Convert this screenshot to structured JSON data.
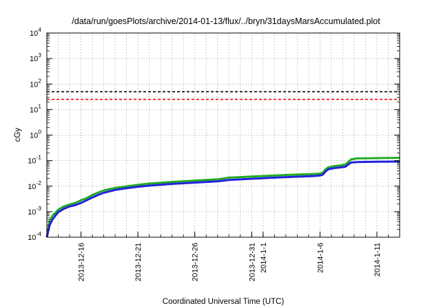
{
  "chart_data": {
    "type": "line",
    "title": "/data/run/goesPlots/archive/2014-01-13/flux/../bryn/31daysMarsAccumulated.plot",
    "xlabel": "Coordinated Universal Time (UTC)",
    "ylabel": "cGy",
    "yscale": "log",
    "ylim": [
      0.0001,
      10000
    ],
    "xlim": [
      "2013-12-13",
      "2014-01-13"
    ],
    "grid": true,
    "y_ticks": [
      {
        "value": 0.0001,
        "base": "10",
        "exp": "-4"
      },
      {
        "value": 0.001,
        "base": "10",
        "exp": "-3"
      },
      {
        "value": 0.01,
        "base": "10",
        "exp": "-2"
      },
      {
        "value": 0.1,
        "base": "10",
        "exp": "-1"
      },
      {
        "value": 1,
        "base": "10",
        "exp": "0"
      },
      {
        "value": 10,
        "base": "10",
        "exp": "1"
      },
      {
        "value": 100,
        "base": "10",
        "exp": "2"
      },
      {
        "value": 1000,
        "base": "10",
        "exp": "3"
      },
      {
        "value": 10000,
        "base": "10",
        "exp": "4"
      }
    ],
    "x_tick_dates": [
      "2013-12-16",
      "2013-12-21",
      "2013-12-26",
      "2013-12-31",
      "2014-01-01",
      "2014-01-06",
      "2014-01-11"
    ],
    "x_tick_labels": [
      "2013-12-16",
      "2013-12-21",
      "2013-12-26",
      "2013-12-31",
      "2014-1-1",
      "2014-1-6",
      "2014-1-11"
    ],
    "hlines": [
      {
        "value": 50,
        "color": "#000000",
        "style": "dashed"
      },
      {
        "value": 25,
        "color": "#ff0000",
        "style": "dashed"
      }
    ],
    "series": [
      {
        "color": "#22aa22",
        "x": [
          "2013-12-13 00:00",
          "2013-12-13 06:00",
          "2013-12-13 12:00",
          "2013-12-13 18:00",
          "2013-12-14 00:00",
          "2013-12-14 12:00",
          "2013-12-15 00:00",
          "2013-12-15 12:00",
          "2013-12-16 00:00",
          "2013-12-16 12:00",
          "2013-12-17 00:00",
          "2013-12-17 12:00",
          "2013-12-18 00:00",
          "2013-12-19 00:00",
          "2013-12-20 00:00",
          "2013-12-21 00:00",
          "2013-12-22 00:00",
          "2013-12-24 00:00",
          "2013-12-26 00:00",
          "2013-12-28 00:00",
          "2013-12-29 00:00",
          "2013-12-31 00:00",
          "2014-01-02 00:00",
          "2014-01-04 00:00",
          "2014-01-05 12:00",
          "2014-01-06 00:00",
          "2014-01-06 06:00",
          "2014-01-06 12:00",
          "2014-01-06 18:00",
          "2014-01-07 06:00",
          "2014-01-07 18:00",
          "2014-01-08 06:00",
          "2014-01-08 12:00",
          "2014-01-08 18:00",
          "2014-01-09 06:00",
          "2014-01-10 00:00",
          "2014-01-11 00:00",
          "2014-01-12 00:00",
          "2014-01-13 00:00"
        ],
        "y": [
          0.0001,
          0.00045,
          0.0007,
          0.0009,
          0.0012,
          0.0016,
          0.0019,
          0.0022,
          0.0028,
          0.0034,
          0.0045,
          0.0056,
          0.0068,
          0.0085,
          0.0098,
          0.0112,
          0.0126,
          0.0146,
          0.0165,
          0.0185,
          0.0215,
          0.0238,
          0.026,
          0.0285,
          0.03,
          0.031,
          0.034,
          0.046,
          0.055,
          0.061,
          0.065,
          0.07,
          0.09,
          0.112,
          0.122,
          0.124,
          0.125,
          0.127,
          0.128
        ]
      },
      {
        "color": "#2222dd",
        "x": [
          "2013-12-13 00:00",
          "2013-12-13 06:00",
          "2013-12-13 12:00",
          "2013-12-13 18:00",
          "2013-12-14 00:00",
          "2013-12-14 12:00",
          "2013-12-15 00:00",
          "2013-12-15 12:00",
          "2013-12-16 00:00",
          "2013-12-16 12:00",
          "2013-12-17 00:00",
          "2013-12-17 12:00",
          "2013-12-18 00:00",
          "2013-12-19 00:00",
          "2013-12-20 00:00",
          "2013-12-21 00:00",
          "2013-12-22 00:00",
          "2013-12-24 00:00",
          "2013-12-26 00:00",
          "2013-12-28 00:00",
          "2013-12-29 00:00",
          "2013-12-31 00:00",
          "2014-01-02 00:00",
          "2014-01-04 00:00",
          "2014-01-05 12:00",
          "2014-01-06 00:00",
          "2014-01-06 06:00",
          "2014-01-06 12:00",
          "2014-01-06 18:00",
          "2014-01-07 06:00",
          "2014-01-07 18:00",
          "2014-01-08 06:00",
          "2014-01-08 12:00",
          "2014-01-08 18:00",
          "2014-01-09 06:00",
          "2014-01-10 00:00",
          "2014-01-11 00:00",
          "2014-01-12 00:00",
          "2014-01-13 00:00"
        ],
        "y": [
          0.0001,
          0.0003,
          0.0005,
          0.0007,
          0.00095,
          0.0013,
          0.0016,
          0.0018,
          0.0022,
          0.0028,
          0.0036,
          0.0045,
          0.0055,
          0.0071,
          0.0083,
          0.0095,
          0.0105,
          0.0122,
          0.0138,
          0.0155,
          0.0175,
          0.0195,
          0.0215,
          0.0235,
          0.025,
          0.026,
          0.028,
          0.038,
          0.046,
          0.051,
          0.054,
          0.058,
          0.072,
          0.084,
          0.088,
          0.089,
          0.09,
          0.091,
          0.092
        ]
      }
    ]
  }
}
